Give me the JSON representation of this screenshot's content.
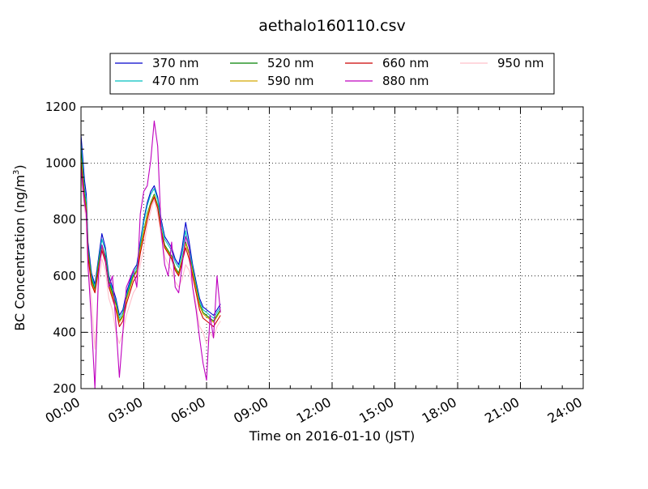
{
  "chart_data": {
    "type": "line",
    "title": "aethalo160110.csv",
    "xlabel": "Time on 2016-01-10 (JST)",
    "ylabel": "BC Concentration (ng/m",
    "ylabel_sup": "3",
    "ylabel_end": ")",
    "xlim": [
      "00:00",
      "24:00"
    ],
    "ylim": [
      200,
      1200
    ],
    "grid": true,
    "legend_position": "top",
    "x_ticks": [
      "00:00",
      "03:00",
      "06:00",
      "09:00",
      "12:00",
      "15:00",
      "18:00",
      "21:00",
      "24:00"
    ],
    "y_ticks": [
      200,
      400,
      600,
      800,
      1000,
      1200
    ],
    "x_base": [
      "00:00",
      "00:10",
      "00:15",
      "00:20",
      "00:30",
      "00:40",
      "00:50",
      "01:00",
      "01:10",
      "01:20",
      "01:30",
      "01:40",
      "01:50",
      "02:00",
      "02:10",
      "02:20",
      "02:30",
      "02:40",
      "02:50",
      "03:00",
      "03:10",
      "03:20",
      "03:30",
      "03:40",
      "03:50",
      "04:00",
      "04:10",
      "04:20",
      "04:30",
      "04:40",
      "04:50",
      "05:00",
      "05:10",
      "05:20",
      "05:30",
      "05:40",
      "05:50",
      "06:00",
      "06:10",
      "06:20",
      "06:30",
      "06:40"
    ],
    "base_values": [
      1100,
      920,
      880,
      700,
      600,
      560,
      640,
      720,
      680,
      580,
      540,
      500,
      440,
      460,
      520,
      560,
      600,
      620,
      700,
      780,
      840,
      880,
      900,
      860,
      780,
      720,
      700,
      680,
      640,
      620,
      660,
      700,
      680,
      620,
      560,
      500,
      470,
      460,
      450,
      440,
      460,
      480
    ],
    "series": [
      {
        "name": "370 nm",
        "color": "#0000cc",
        "values": [
          1100,
          940,
          890,
          720,
          610,
          570,
          660,
          750,
          700,
          600,
          560,
          520,
          460,
          480,
          540,
          580,
          620,
          640,
          720,
          800,
          860,
          900,
          920,
          880,
          800,
          740,
          720,
          700,
          660,
          640,
          700,
          790,
          720,
          640,
          580,
          520,
          490,
          480,
          470,
          460,
          480,
          500
        ]
      },
      {
        "name": "470 nm",
        "color": "#00bfbf",
        "values": [
          1070,
          910,
          870,
          700,
          600,
          560,
          650,
          730,
          690,
          590,
          550,
          510,
          450,
          470,
          530,
          570,
          610,
          630,
          710,
          790,
          850,
          890,
          910,
          870,
          790,
          730,
          710,
          690,
          650,
          630,
          680,
          760,
          700,
          630,
          570,
          510,
          480,
          470,
          460,
          450,
          470,
          490
        ]
      },
      {
        "name": "520 nm",
        "color": "#008000",
        "values": [
          1040,
          890,
          850,
          690,
          590,
          550,
          640,
          710,
          670,
          580,
          540,
          500,
          440,
          460,
          520,
          560,
          600,
          620,
          700,
          760,
          820,
          860,
          890,
          850,
          770,
          710,
          690,
          670,
          630,
          610,
          660,
          720,
          680,
          620,
          560,
          500,
          470,
          460,
          450,
          440,
          460,
          480
        ]
      },
      {
        "name": "590 nm",
        "color": "#d4a800",
        "values": [
          1020,
          880,
          840,
          680,
          580,
          545,
          630,
          700,
          660,
          570,
          530,
          495,
          435,
          455,
          515,
          555,
          595,
          615,
          695,
          755,
          815,
          855,
          885,
          845,
          765,
          705,
          685,
          665,
          625,
          605,
          655,
          715,
          675,
          615,
          555,
          495,
          465,
          455,
          445,
          435,
          455,
          475
        ]
      },
      {
        "name": "660 nm",
        "color": "#cc0000",
        "values": [
          1000,
          870,
          830,
          670,
          570,
          540,
          620,
          690,
          650,
          560,
          520,
          480,
          420,
          440,
          500,
          540,
          580,
          600,
          680,
          740,
          800,
          850,
          880,
          840,
          760,
          700,
          680,
          660,
          620,
          600,
          650,
          700,
          660,
          600,
          540,
          480,
          450,
          440,
          430,
          420,
          440,
          460
        ]
      },
      {
        "name": "880 nm",
        "color": "#bf00bf",
        "values": [
          980,
          860,
          820,
          640,
          440,
          200,
          600,
          710,
          660,
          560,
          600,
          430,
          240,
          400,
          560,
          590,
          620,
          560,
          820,
          900,
          920,
          1010,
          1150,
          1060,
          760,
          640,
          600,
          720,
          560,
          540,
          640,
          740,
          700,
          560,
          480,
          380,
          290,
          230,
          460,
          380,
          600,
          470
        ]
      },
      {
        "name": "950 nm",
        "color": "#ffc0cb",
        "values": [
          950,
          840,
          800,
          620,
          520,
          340,
          560,
          660,
          620,
          520,
          480,
          400,
          360,
          400,
          460,
          500,
          540,
          560,
          640,
          700,
          780,
          830,
          870,
          820,
          740,
          670,
          640,
          620,
          580,
          560,
          590,
          640,
          620,
          560,
          500,
          420,
          400,
          360,
          400,
          380,
          420,
          440
        ]
      }
    ]
  }
}
